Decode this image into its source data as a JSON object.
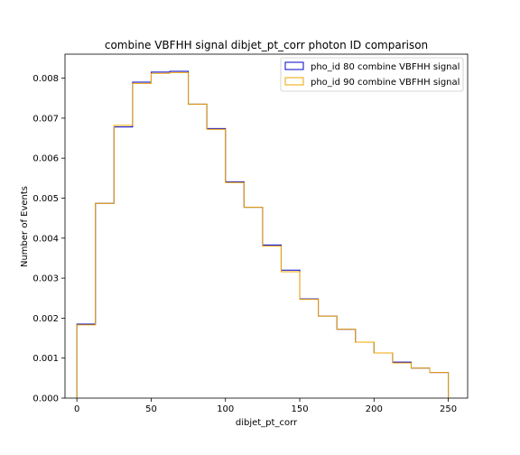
{
  "chart_data": {
    "type": "step histogram",
    "title": "combine VBFHH signal dibjet_pt_corr photon ID comparison",
    "xlabel": "dibjet_pt_corr",
    "ylabel": "Number of Events",
    "xlim": [
      -8,
      263
    ],
    "ylim": [
      0,
      0.0086
    ],
    "xticks": [
      0,
      50,
      100,
      150,
      200,
      250
    ],
    "xtick_labels": [
      "0",
      "50",
      "100",
      "150",
      "200",
      "250"
    ],
    "yticks": [
      0,
      0.001,
      0.002,
      0.003,
      0.004,
      0.005,
      0.006,
      0.007,
      0.008
    ],
    "ytick_labels": [
      "0.000",
      "0.001",
      "0.002",
      "0.003",
      "0.004",
      "0.005",
      "0.006",
      "0.007",
      "0.008"
    ],
    "bin_edges": [
      0,
      12.5,
      25,
      37.5,
      50,
      62.5,
      75,
      87.5,
      100,
      112.5,
      125,
      137.5,
      150,
      162.5,
      175,
      187.5,
      200,
      212.5,
      225,
      237.5,
      250
    ],
    "legend_position": "upper right",
    "series": [
      {
        "name": "pho_id 80 combine VBFHH signal",
        "color": "#0000cc",
        "values": [
          0.00185,
          0.00487,
          0.00678,
          0.0079,
          0.00815,
          0.00817,
          0.00735,
          0.00674,
          0.00541,
          0.00477,
          0.00383,
          0.0032,
          0.00248,
          0.00205,
          0.00172,
          0.0014,
          0.00113,
          0.0009,
          0.00075,
          0.00064
        ]
      },
      {
        "name": "pho_id 90 combine VBFHH signal",
        "color": "#f0a500",
        "values": [
          0.00183,
          0.00487,
          0.00682,
          0.00787,
          0.00812,
          0.00814,
          0.00735,
          0.00672,
          0.00539,
          0.00477,
          0.0038,
          0.00316,
          0.00247,
          0.00205,
          0.00172,
          0.0014,
          0.00113,
          0.00088,
          0.00075,
          0.00064
        ]
      }
    ]
  }
}
